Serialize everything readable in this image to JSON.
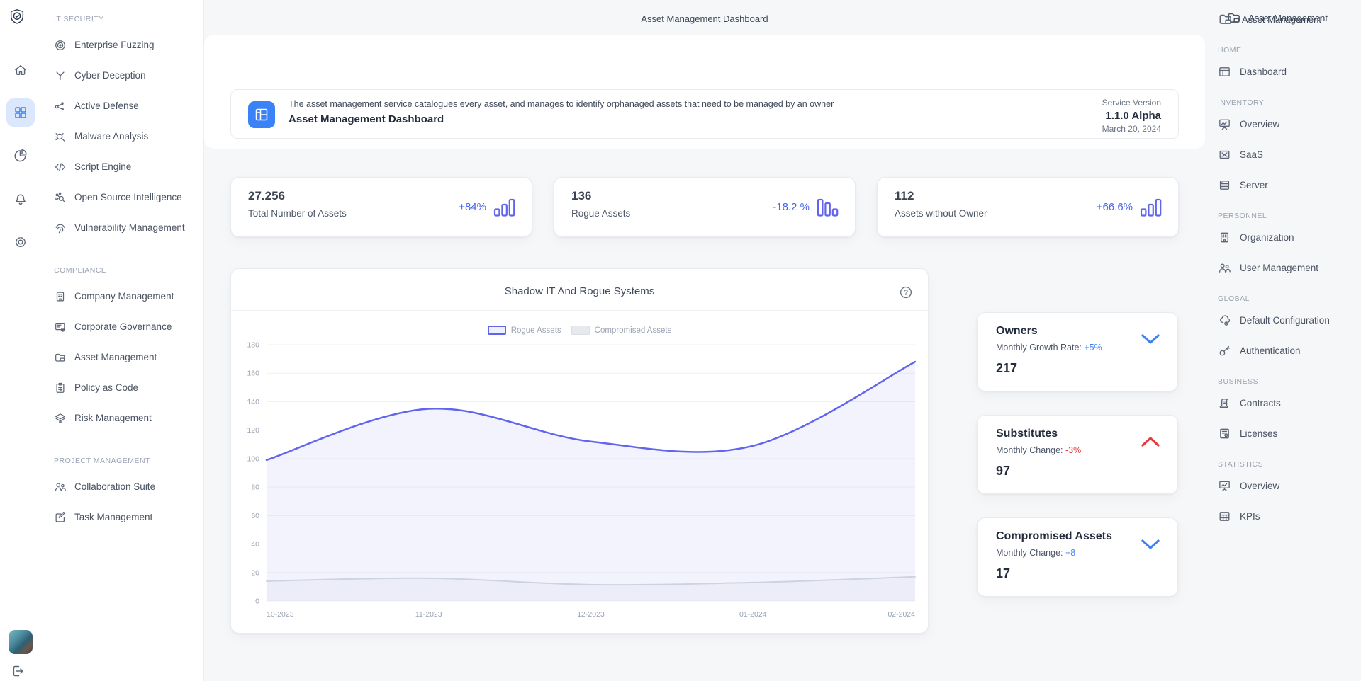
{
  "window": {
    "center_title": "Asset Management Dashboard",
    "top_right_label": "Asset Management"
  },
  "rail": {
    "logo_icon": "shield-check-icon",
    "buttons": [
      "home-icon",
      "grid-icon",
      "pie-chart-icon",
      "bell-icon",
      "gear-icon"
    ],
    "active_button": "grid-icon",
    "avatar": "user-avatar-photo",
    "logout_icon": "logout-icon"
  },
  "sidebar_left": {
    "sections": [
      {
        "header": "IT SECURITY",
        "items": [
          {
            "icon": "target-icon",
            "label": "Enterprise Fuzzing"
          },
          {
            "icon": "branch-icon",
            "label": "Cyber Deception"
          },
          {
            "icon": "share-network-icon",
            "label": "Active Defense"
          },
          {
            "icon": "bug-search-icon",
            "label": "Malware Analysis"
          },
          {
            "icon": "code-icon",
            "label": "Script Engine"
          },
          {
            "icon": "osint-search-icon",
            "label": "Open Source Intelligence"
          },
          {
            "icon": "fingerprint-icon",
            "label": "Vulnerability Management"
          }
        ]
      },
      {
        "header": "COMPLIANCE",
        "items": [
          {
            "icon": "building-icon",
            "label": "Company Management"
          },
          {
            "icon": "list-gear-icon",
            "label": "Corporate Governance"
          },
          {
            "icon": "folder-icon",
            "label": "Asset Management"
          },
          {
            "icon": "clipboard-icon",
            "label": "Policy as Code"
          },
          {
            "icon": "layers-icon",
            "label": "Risk Management"
          }
        ]
      },
      {
        "header": "PROJECT MANAGEMENT",
        "items": [
          {
            "icon": "people-icon",
            "label": "Collaboration Suite"
          },
          {
            "icon": "edit-square-icon",
            "label": "Task Management"
          }
        ]
      }
    ]
  },
  "banner": {
    "icon": "dashboard-layout-icon",
    "description": "The asset management service catalogues every asset, and manages to identify orphanaged assets that need to be managed by an owner",
    "title": "Asset Management Dashboard",
    "service_version_label": "Service Version",
    "version": "1.1.0 Alpha",
    "date": "March 20, 2024",
    "icon_bg_color": "#3b82f6"
  },
  "stats": [
    {
      "value": "27.256",
      "label": "Total Number of Assets",
      "change": "+84%",
      "trend_icon": "bars-ascending-icon",
      "change_color": "#4664ef"
    },
    {
      "value": "136",
      "label": "Rogue Assets",
      "change": "-18.2 %",
      "trend_icon": "bars-descending-icon",
      "change_color": "#4664ef"
    },
    {
      "value": "112",
      "label": "Assets without Owner",
      "change": "+66.6%",
      "trend_icon": "bars-ascending-icon",
      "change_color": "#4664ef"
    }
  ],
  "chart_card": {
    "title": "Shadow IT And Rogue Systems",
    "help_icon": "help-circle-icon"
  },
  "chart_data": {
    "type": "area",
    "title": "Shadow IT And Rogue Systems",
    "x": [
      "10-2023",
      "11-2023",
      "12-2023",
      "01-2024",
      "02-2024"
    ],
    "series": [
      {
        "name": "Rogue Assets",
        "values": [
          99,
          135,
          112,
          109,
          168
        ],
        "color": "#6165ee",
        "fill": "rgba(97,101,238,0.08)"
      },
      {
        "name": "Compromised Assets",
        "values": [
          14,
          16,
          11.5,
          13,
          17
        ],
        "color": "#cdd3e0",
        "fill": "rgba(205,211,224,0.18)"
      }
    ],
    "ylim": [
      0,
      180
    ],
    "ytick_step": 20,
    "grid": true,
    "legend_position": "top",
    "axis_label_color": "#9aa3b2",
    "grid_color": "#f0f2f6"
  },
  "right_cards": [
    {
      "title": "Owners",
      "sub_prefix": "Monthly Growth Rate: ",
      "change": "+5%",
      "change_tone": "pos",
      "value": "217",
      "chevron": "chevron-down",
      "chevron_color": "#3b82f6"
    },
    {
      "title": "Substitutes",
      "sub_prefix": "Monthly Change: ",
      "change": "-3%",
      "change_tone": "neg",
      "value": "97",
      "chevron": "chevron-up",
      "chevron_color": "#e23b3b"
    },
    {
      "title": "Compromised Assets",
      "sub_prefix": "Monthly Change: ",
      "change": "+8",
      "change_tone": "pos",
      "value": "17",
      "chevron": "chevron-down",
      "chevron_color": "#3b82f6"
    }
  ],
  "sidebar_right": {
    "header": {
      "icon": "folder-icon",
      "label": "Asset Management"
    },
    "sections": [
      {
        "header": "HOME",
        "items": [
          {
            "icon": "window-icon",
            "label": "Dashboard"
          }
        ]
      },
      {
        "header": "INVENTORY",
        "items": [
          {
            "icon": "board-icon",
            "label": "Overview"
          },
          {
            "icon": "box-x-icon",
            "label": "SaaS"
          },
          {
            "icon": "rows-icon",
            "label": "Server"
          }
        ]
      },
      {
        "header": "PERSONNEL",
        "items": [
          {
            "icon": "building-icon",
            "label": "Organization"
          },
          {
            "icon": "people-icon",
            "label": "User Management"
          }
        ]
      },
      {
        "header": "GLOBAL",
        "items": [
          {
            "icon": "cloud-gear-icon",
            "label": "Default Configuration"
          },
          {
            "icon": "key-icon",
            "label": "Authentication"
          }
        ]
      },
      {
        "header": "BUSINESS",
        "items": [
          {
            "icon": "scroll-icon",
            "label": "Contracts"
          },
          {
            "icon": "certificate-icon",
            "label": "Licenses"
          }
        ]
      },
      {
        "header": "STATISTICS",
        "items": [
          {
            "icon": "board-icon",
            "label": "Overview"
          },
          {
            "icon": "table-icon",
            "label": "KPIs"
          }
        ]
      }
    ]
  }
}
